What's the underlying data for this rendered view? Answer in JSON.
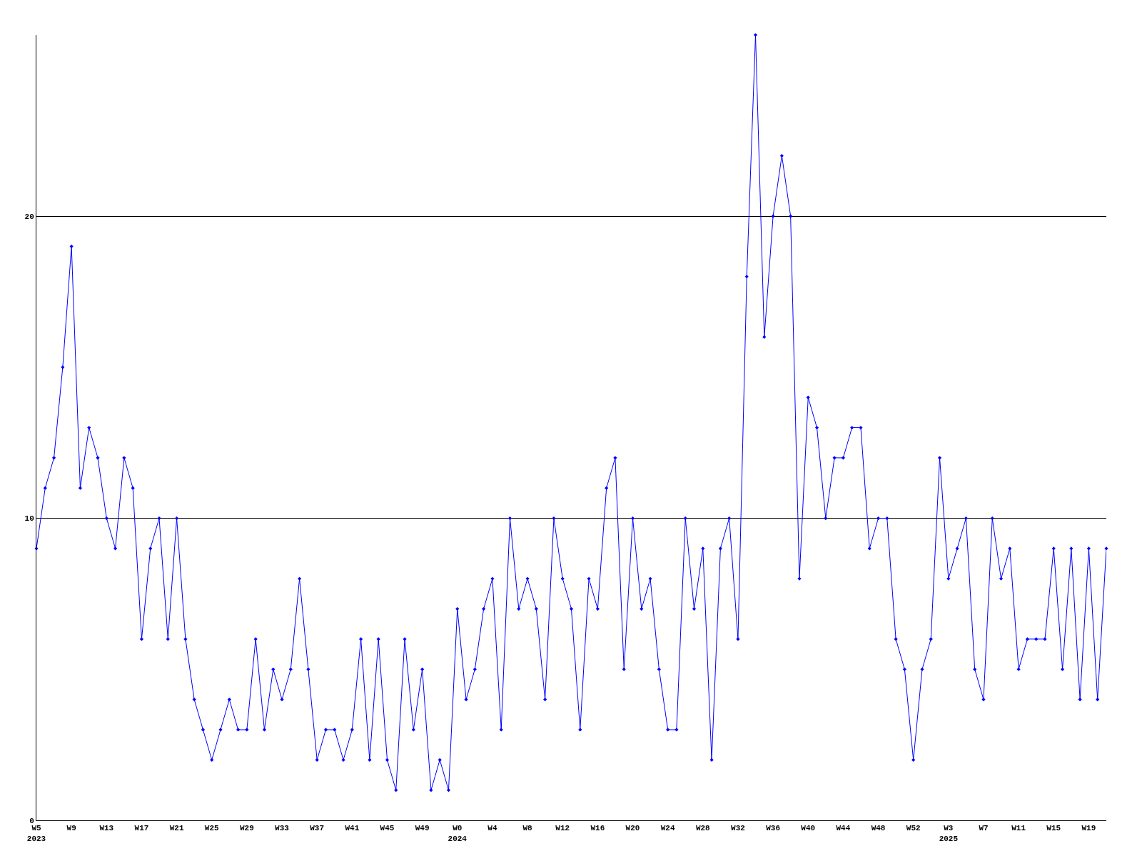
{
  "chart_data": {
    "type": "line",
    "categories": [
      "W5\n2023",
      null,
      null,
      null,
      "W9",
      null,
      null,
      null,
      "W13",
      null,
      null,
      null,
      "W17",
      null,
      null,
      null,
      "W21",
      null,
      null,
      null,
      "W25",
      null,
      null,
      null,
      "W29",
      null,
      null,
      null,
      "W33",
      null,
      null,
      null,
      "W37",
      null,
      null,
      null,
      "W41",
      null,
      null,
      null,
      "W45",
      null,
      null,
      null,
      "W49",
      null,
      null,
      null,
      "W0\n2024",
      null,
      null,
      null,
      "W4",
      null,
      null,
      null,
      "W8",
      null,
      null,
      null,
      "W12",
      null,
      null,
      null,
      "W16",
      null,
      null,
      null,
      "W20",
      null,
      null,
      null,
      "W24",
      null,
      null,
      null,
      "W28",
      null,
      null,
      null,
      "W32",
      null,
      null,
      null,
      "W36",
      null,
      null,
      null,
      "W40",
      null,
      null,
      null,
      "W44",
      null,
      null,
      null,
      "W48",
      null,
      null,
      null,
      "W52",
      null,
      null,
      null,
      "W3\n2025",
      null,
      null,
      null,
      "W7",
      null,
      null,
      null,
      "W11",
      null,
      null,
      null,
      "W15",
      null,
      null,
      null,
      "W19",
      null,
      null
    ],
    "series": [
      {
        "color": "#0000ff",
        "values": [
          9,
          11,
          12,
          15,
          19,
          11,
          13,
          12,
          10,
          9,
          12,
          11,
          6,
          9,
          10,
          6,
          10,
          6,
          4,
          3,
          2,
          3,
          4,
          3,
          3,
          6,
          3,
          5,
          4,
          5,
          8,
          5,
          2,
          3,
          3,
          2,
          3,
          6,
          2,
          6,
          2,
          1,
          6,
          3,
          5,
          1,
          2,
          1,
          7,
          4,
          5,
          7,
          8,
          3,
          10,
          7,
          8,
          7,
          4,
          10,
          8,
          7,
          3,
          8,
          7,
          11,
          12,
          5,
          10,
          7,
          8,
          5,
          3,
          3,
          10,
          7,
          9,
          2,
          9,
          10,
          6,
          18,
          26,
          16,
          20,
          22,
          20,
          8,
          14,
          13,
          10,
          12,
          12,
          13,
          13,
          9,
          10,
          10,
          6,
          5,
          2,
          5,
          6,
          12,
          8,
          9,
          10,
          5,
          4,
          10,
          8,
          9,
          5,
          6,
          6,
          6,
          9,
          5,
          9,
          4,
          9,
          4,
          9
        ]
      }
    ],
    "ylim": [
      0,
      26
    ],
    "yticks": [
      0,
      10,
      20
    ],
    "grid": "y",
    "marker": "diamond",
    "line_style": "solid"
  }
}
